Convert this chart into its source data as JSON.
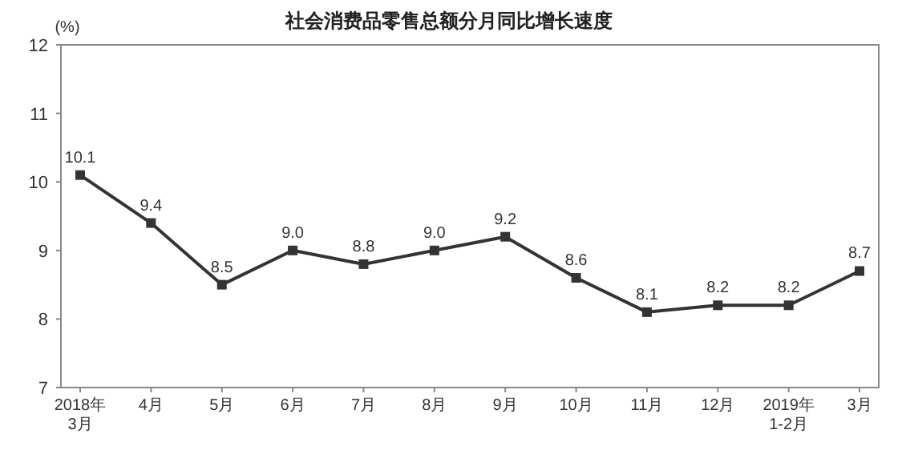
{
  "chart_data": {
    "type": "line",
    "title": "社会消费品零售总额分月同比增长速度",
    "ylabel": "(%)",
    "categories": [
      "2018年\n3月",
      "4月",
      "5月",
      "6月",
      "7月",
      "8月",
      "9月",
      "10月",
      "11月",
      "12月",
      "2019年\n1-2月",
      "3月"
    ],
    "series": [
      {
        "color": "#333333",
        "values": [
          10.1,
          9.4,
          8.5,
          9.0,
          8.8,
          9.0,
          9.2,
          8.6,
          8.1,
          8.2,
          8.2,
          8.7
        ],
        "value_labels": [
          "10.1",
          "9.4",
          "8.5",
          "9.0",
          "8.8",
          "9.0",
          "9.2",
          "8.6",
          "8.1",
          "8.2",
          "8.2",
          "8.7"
        ]
      }
    ],
    "ylim": [
      7,
      12
    ],
    "yticks": [
      7,
      8,
      9,
      10,
      11,
      12
    ],
    "marker": "square",
    "line_style": "solid",
    "grid": false
  }
}
